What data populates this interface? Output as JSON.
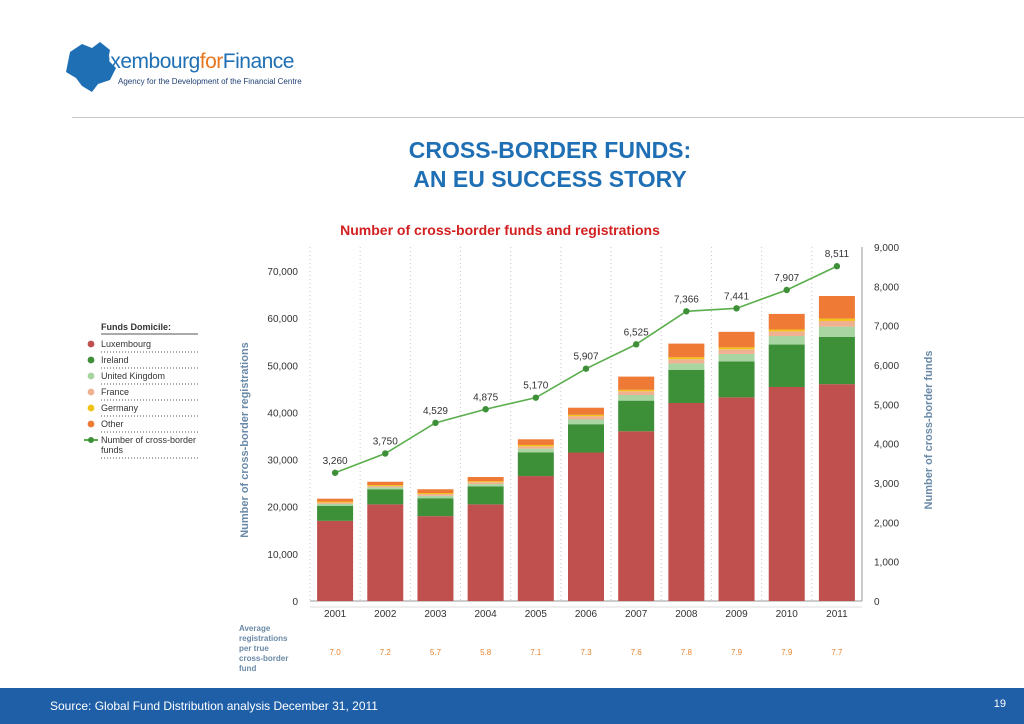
{
  "logo": {
    "part1": "Lux",
    "part2": "embourg",
    "part3": "for",
    "part4": "Finance",
    "tagline": "Agency for the Development of the Financial Centre"
  },
  "title": {
    "line1": "CROSS-BORDER FUNDS:",
    "line2": "AN EU SUCCESS STORY"
  },
  "footer": {
    "source": "Source: Global Fund Distribution analysis December 31, 2011",
    "page": "19"
  },
  "colors": {
    "brand_blue": "#1f6fb5",
    "footer_blue": "#1f5fa8",
    "chart_title_red": "#d21f1f"
  },
  "chart_data": {
    "type": "bar",
    "stacked": true,
    "title": "Number of cross-border funds and registrations",
    "categories": [
      "2001",
      "2002",
      "2003",
      "2004",
      "2005",
      "2006",
      "2007",
      "2008",
      "2009",
      "2010",
      "2011"
    ],
    "ylabel": "Number of cross-border registrations",
    "ylim": [
      0,
      70000
    ],
    "y_ticks": [
      "0",
      "10,000",
      "20,000",
      "30,000",
      "40,000",
      "50,000",
      "60,000",
      "70,000"
    ],
    "y2label": "Number of cross-border funds",
    "y2lim": [
      0,
      9000
    ],
    "y2_ticks": [
      "0",
      "1,000",
      "2,000",
      "3,000",
      "4,000",
      "5,000",
      "6,000",
      "7,000",
      "8,000",
      "9,000"
    ],
    "legend_title": "Funds Domicile:",
    "legend_position": "left",
    "grid": "vertical-dotted",
    "series": [
      {
        "name": "Luxembourg",
        "color": "#c0504d",
        "values": [
          17000,
          20500,
          18000,
          20500,
          26500,
          31500,
          36000,
          42000,
          43200,
          45400,
          46000
        ]
      },
      {
        "name": "Ireland",
        "color": "#3d8f38",
        "values": [
          3200,
          3200,
          3800,
          3800,
          5000,
          6000,
          6500,
          7000,
          7600,
          9000,
          10000
        ]
      },
      {
        "name": "United Kingdom",
        "color": "#a8d5a2",
        "values": [
          400,
          400,
          500,
          500,
          800,
          1000,
          1200,
          1400,
          1600,
          1800,
          2200
        ]
      },
      {
        "name": "France",
        "color": "#f0b190",
        "values": [
          300,
          300,
          400,
          400,
          500,
          700,
          800,
          900,
          1000,
          1000,
          1200
        ]
      },
      {
        "name": "Germany",
        "color": "#f2c317",
        "values": [
          200,
          200,
          200,
          200,
          300,
          300,
          300,
          400,
          400,
          400,
          500
        ]
      },
      {
        "name": "Other",
        "color": "#ee7a35",
        "values": [
          600,
          700,
          800,
          900,
          1200,
          1500,
          2800,
          2900,
          3300,
          3300,
          4800
        ]
      }
    ],
    "line_series": {
      "name": "Number of cross-border funds",
      "color": "#5aae4c",
      "axis": "right",
      "values": [
        3260,
        3750,
        4529,
        4875,
        5170,
        5907,
        6525,
        7366,
        7441,
        7907,
        8511
      ],
      "labels": [
        "3,260",
        "3,750",
        "4,529",
        "4,875",
        "5,170",
        "5,907",
        "6,525",
        "7,366",
        "7,441",
        "7,907",
        "8,511"
      ]
    },
    "legend_labels": [
      "Luxembourg",
      "Ireland",
      "United Kingdom",
      "France",
      "Germany",
      "Other",
      "Number of cross-border funds"
    ],
    "bottom_row_label": "Average registrations per true cross-border fund",
    "bottom_row_values": [
      "7.0",
      "7.2",
      "5.7",
      "5.8",
      "7.1",
      "7.3",
      "7.6",
      "7.8",
      "7.9",
      "7.9",
      "7.7"
    ],
    "bottom_row_color": "#e8822c"
  }
}
